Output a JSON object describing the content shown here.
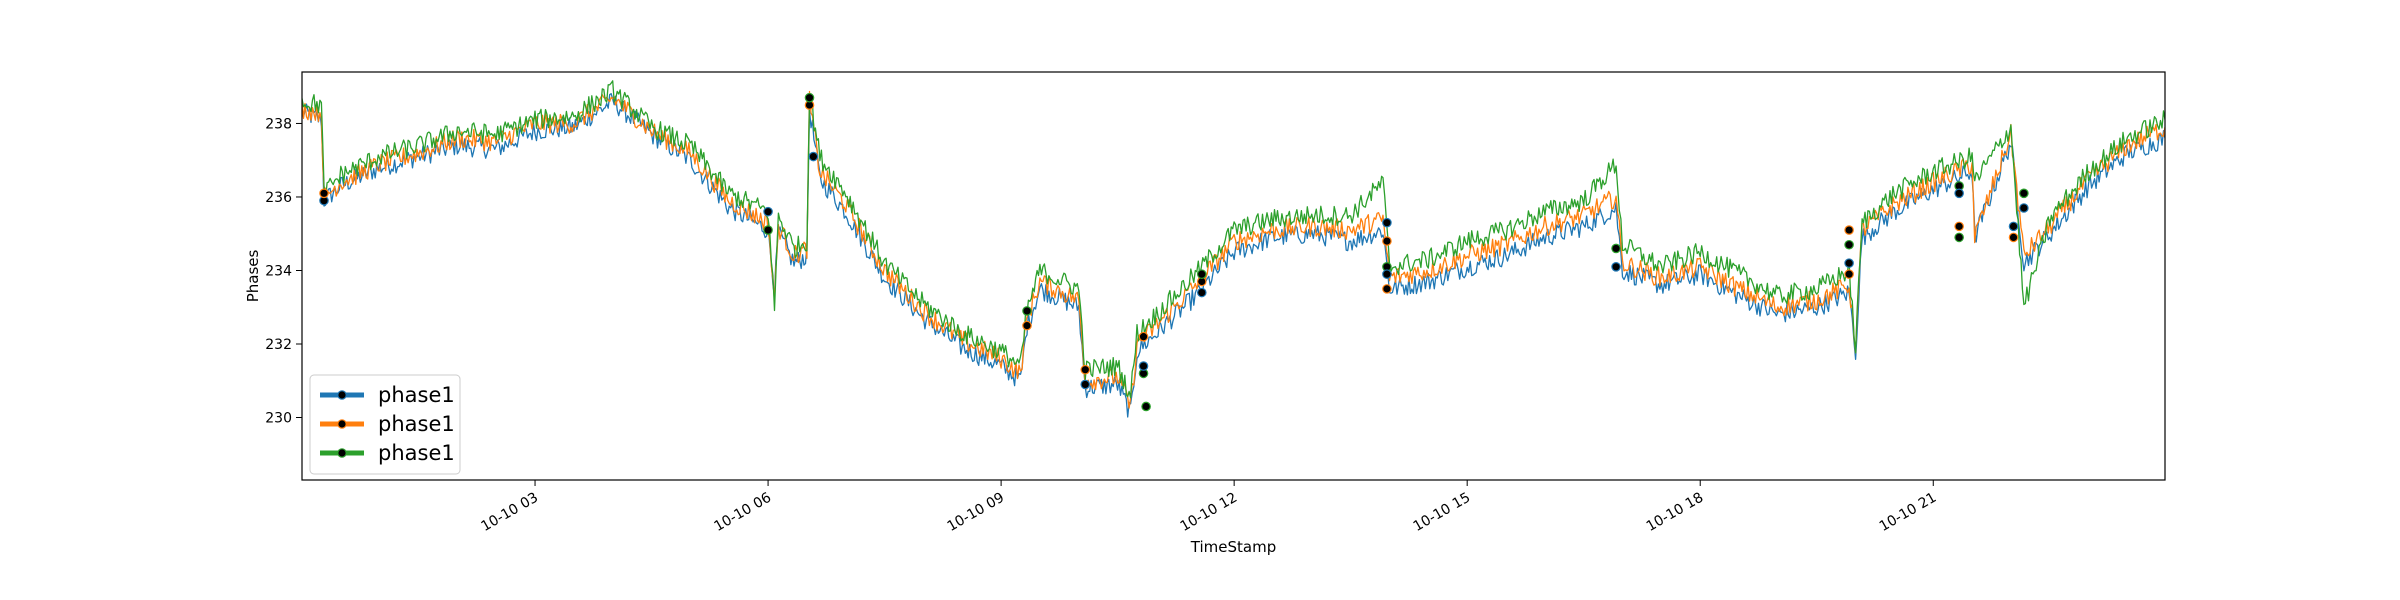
{
  "chart_data": {
    "type": "line",
    "title": "",
    "xlabel": "TimeStamp",
    "ylabel": "Phases",
    "xlim": [
      "2023-10-10 00:00",
      "2023-10-10 23:59"
    ],
    "ylim": [
      228.3,
      239.4
    ],
    "yticks": [
      230,
      232,
      234,
      236,
      238
    ],
    "xticks": [
      {
        "t": "2023-10-10 03:00",
        "label": "10-10 03"
      },
      {
        "t": "2023-10-10 06:00",
        "label": "10-10 06"
      },
      {
        "t": "2023-10-10 09:00",
        "label": "10-10 09"
      },
      {
        "t": "2023-10-10 12:00",
        "label": "10-10 12"
      },
      {
        "t": "2023-10-10 15:00",
        "label": "10-10 15"
      },
      {
        "t": "2023-10-10 18:00",
        "label": "10-10 18"
      },
      {
        "t": "2023-10-10 21:00",
        "label": "10-10 21"
      }
    ],
    "grid": false,
    "legend_position": "lower-left",
    "series": [
      {
        "name": "phase1",
        "color": "#1f77b4",
        "points": [
          [
            "2023-10-10 00:00",
            238.3
          ],
          [
            "2023-10-10 00:15",
            238.1
          ],
          [
            "2023-10-10 00:17",
            235.9
          ],
          [
            "2023-10-10 00:30",
            236.3
          ],
          [
            "2023-10-10 01:00",
            236.8
          ],
          [
            "2023-10-10 01:30",
            237.1
          ],
          [
            "2023-10-10 02:00",
            237.4
          ],
          [
            "2023-10-10 02:30",
            237.3
          ],
          [
            "2023-10-10 03:00",
            237.8
          ],
          [
            "2023-10-10 03:30",
            237.9
          ],
          [
            "2023-10-10 04:00",
            238.6
          ],
          [
            "2023-10-10 04:30",
            237.7
          ],
          [
            "2023-10-10 05:00",
            237.0
          ],
          [
            "2023-10-10 05:30",
            235.7
          ],
          [
            "2023-10-10 06:00",
            235.1
          ],
          [
            "2023-10-10 06:05",
            233.5
          ],
          [
            "2023-10-10 06:08",
            235.0
          ],
          [
            "2023-10-10 06:20",
            234.2
          ],
          [
            "2023-10-10 06:30",
            234.4
          ],
          [
            "2023-10-10 06:32",
            238.4
          ],
          [
            "2023-10-10 06:40",
            236.5
          ],
          [
            "2023-10-10 07:00",
            235.6
          ],
          [
            "2023-10-10 07:30",
            233.8
          ],
          [
            "2023-10-10 08:00",
            232.7
          ],
          [
            "2023-10-10 08:30",
            231.9
          ],
          [
            "2023-10-10 09:00",
            231.4
          ],
          [
            "2023-10-10 09:15",
            231.0
          ],
          [
            "2023-10-10 09:20",
            232.5
          ],
          [
            "2023-10-10 09:30",
            233.5
          ],
          [
            "2023-10-10 10:00",
            233.0
          ],
          [
            "2023-10-10 10:05",
            230.8
          ],
          [
            "2023-10-10 10:30",
            230.9
          ],
          [
            "2023-10-10 10:40",
            230.1
          ],
          [
            "2023-10-10 10:45",
            231.8
          ],
          [
            "2023-10-10 11:00",
            232.3
          ],
          [
            "2023-10-10 11:30",
            233.3
          ],
          [
            "2023-10-10 12:00",
            234.5
          ],
          [
            "2023-10-10 12:30",
            234.9
          ],
          [
            "2023-10-10 13:00",
            235.0
          ],
          [
            "2023-10-10 13:30",
            234.8
          ],
          [
            "2023-10-10 13:55",
            235.1
          ],
          [
            "2023-10-10 14:00",
            233.5
          ],
          [
            "2023-10-10 14:30",
            233.7
          ],
          [
            "2023-10-10 15:00",
            234.1
          ],
          [
            "2023-10-10 15:30",
            234.4
          ],
          [
            "2023-10-10 16:00",
            234.9
          ],
          [
            "2023-10-10 16:30",
            235.2
          ],
          [
            "2023-10-10 16:55",
            235.7
          ],
          [
            "2023-10-10 17:00",
            234.0
          ],
          [
            "2023-10-10 17:30",
            233.6
          ],
          [
            "2023-10-10 18:00",
            233.9
          ],
          [
            "2023-10-10 18:30",
            233.3
          ],
          [
            "2023-10-10 19:00",
            232.8
          ],
          [
            "2023-10-10 19:30",
            233.0
          ],
          [
            "2023-10-10 19:55",
            233.4
          ],
          [
            "2023-10-10 20:00",
            231.8
          ],
          [
            "2023-10-10 20:05",
            234.9
          ],
          [
            "2023-10-10 20:30",
            235.6
          ],
          [
            "2023-10-10 21:00",
            236.2
          ],
          [
            "2023-10-10 21:30",
            236.7
          ],
          [
            "2023-10-10 21:32",
            234.9
          ],
          [
            "2023-10-10 22:00",
            237.5
          ],
          [
            "2023-10-10 22:10",
            234.2
          ],
          [
            "2023-10-10 22:30",
            235.0
          ],
          [
            "2023-10-10 23:00",
            236.3
          ],
          [
            "2023-10-10 23:30",
            237.2
          ],
          [
            "2023-10-10 23:59",
            237.6
          ]
        ]
      },
      {
        "name": "phase1",
        "color": "#ff7f0e",
        "points": [
          [
            "2023-10-10 00:00",
            238.4
          ],
          [
            "2023-10-10 00:15",
            238.3
          ],
          [
            "2023-10-10 00:17",
            236.0
          ],
          [
            "2023-10-10 00:30",
            236.4
          ],
          [
            "2023-10-10 01:00",
            236.9
          ],
          [
            "2023-10-10 01:30",
            237.2
          ],
          [
            "2023-10-10 02:00",
            237.6
          ],
          [
            "2023-10-10 02:30",
            237.5
          ],
          [
            "2023-10-10 03:00",
            238.0
          ],
          [
            "2023-10-10 03:30",
            238.0
          ],
          [
            "2023-10-10 04:00",
            238.7
          ],
          [
            "2023-10-10 04:30",
            237.8
          ],
          [
            "2023-10-10 05:00",
            237.2
          ],
          [
            "2023-10-10 05:30",
            235.9
          ],
          [
            "2023-10-10 06:00",
            235.3
          ],
          [
            "2023-10-10 06:05",
            233.2
          ],
          [
            "2023-10-10 06:08",
            235.2
          ],
          [
            "2023-10-10 06:20",
            234.4
          ],
          [
            "2023-10-10 06:30",
            234.6
          ],
          [
            "2023-10-10 06:32",
            238.6
          ],
          [
            "2023-10-10 06:40",
            236.7
          ],
          [
            "2023-10-10 07:00",
            235.8
          ],
          [
            "2023-10-10 07:30",
            234.0
          ],
          [
            "2023-10-10 08:00",
            232.9
          ],
          [
            "2023-10-10 08:30",
            232.1
          ],
          [
            "2023-10-10 09:00",
            231.6
          ],
          [
            "2023-10-10 09:15",
            231.2
          ],
          [
            "2023-10-10 09:20",
            232.7
          ],
          [
            "2023-10-10 09:30",
            233.7
          ],
          [
            "2023-10-10 10:00",
            233.2
          ],
          [
            "2023-10-10 10:05",
            231.0
          ],
          [
            "2023-10-10 10:30",
            231.1
          ],
          [
            "2023-10-10 10:40",
            230.3
          ],
          [
            "2023-10-10 10:45",
            232.0
          ],
          [
            "2023-10-10 11:00",
            232.5
          ],
          [
            "2023-10-10 11:30",
            233.6
          ],
          [
            "2023-10-10 12:00",
            234.8
          ],
          [
            "2023-10-10 12:30",
            235.1
          ],
          [
            "2023-10-10 13:00",
            235.2
          ],
          [
            "2023-10-10 13:30",
            235.1
          ],
          [
            "2023-10-10 13:55",
            235.4
          ],
          [
            "2023-10-10 14:00",
            233.8
          ],
          [
            "2023-10-10 14:30",
            234.0
          ],
          [
            "2023-10-10 15:00",
            234.4
          ],
          [
            "2023-10-10 15:30",
            234.7
          ],
          [
            "2023-10-10 16:00",
            235.2
          ],
          [
            "2023-10-10 16:30",
            235.5
          ],
          [
            "2023-10-10 16:55",
            236.0
          ],
          [
            "2023-10-10 17:00",
            234.2
          ],
          [
            "2023-10-10 17:30",
            233.8
          ],
          [
            "2023-10-10 18:00",
            234.1
          ],
          [
            "2023-10-10 18:30",
            233.5
          ],
          [
            "2023-10-10 19:00",
            233.0
          ],
          [
            "2023-10-10 19:30",
            233.2
          ],
          [
            "2023-10-10 19:55",
            233.6
          ],
          [
            "2023-10-10 20:00",
            232.0
          ],
          [
            "2023-10-10 20:05",
            235.1
          ],
          [
            "2023-10-10 20:30",
            235.8
          ],
          [
            "2023-10-10 21:00",
            236.4
          ],
          [
            "2023-10-10 21:30",
            236.9
          ],
          [
            "2023-10-10 21:32",
            234.9
          ],
          [
            "2023-10-10 22:00",
            237.7
          ],
          [
            "2023-10-10 22:10",
            234.4
          ],
          [
            "2023-10-10 22:30",
            235.2
          ],
          [
            "2023-10-10 23:00",
            236.5
          ],
          [
            "2023-10-10 23:30",
            237.4
          ],
          [
            "2023-10-10 23:59",
            237.9
          ]
        ]
      },
      {
        "name": "phase1",
        "color": "#2ca02c",
        "points": [
          [
            "2023-10-10 00:00",
            238.6
          ],
          [
            "2023-10-10 00:15",
            238.5
          ],
          [
            "2023-10-10 00:17",
            236.1
          ],
          [
            "2023-10-10 00:30",
            236.6
          ],
          [
            "2023-10-10 01:00",
            237.1
          ],
          [
            "2023-10-10 01:30",
            237.4
          ],
          [
            "2023-10-10 02:00",
            237.8
          ],
          [
            "2023-10-10 02:30",
            237.7
          ],
          [
            "2023-10-10 03:00",
            238.1
          ],
          [
            "2023-10-10 03:30",
            238.2
          ],
          [
            "2023-10-10 04:00",
            238.9
          ],
          [
            "2023-10-10 04:30",
            237.9
          ],
          [
            "2023-10-10 05:00",
            237.4
          ],
          [
            "2023-10-10 05:30",
            236.1
          ],
          [
            "2023-10-10 06:00",
            235.6
          ],
          [
            "2023-10-10 06:05",
            233.0
          ],
          [
            "2023-10-10 06:08",
            235.5
          ],
          [
            "2023-10-10 06:20",
            234.6
          ],
          [
            "2023-10-10 06:30",
            234.8
          ],
          [
            "2023-10-10 06:32",
            238.8
          ],
          [
            "2023-10-10 06:40",
            237.1
          ],
          [
            "2023-10-10 07:00",
            236.1
          ],
          [
            "2023-10-10 07:30",
            234.2
          ],
          [
            "2023-10-10 08:00",
            233.1
          ],
          [
            "2023-10-10 08:30",
            232.3
          ],
          [
            "2023-10-10 09:00",
            231.8
          ],
          [
            "2023-10-10 09:15",
            231.4
          ],
          [
            "2023-10-10 09:20",
            232.9
          ],
          [
            "2023-10-10 09:30",
            234.0
          ],
          [
            "2023-10-10 10:00",
            233.5
          ],
          [
            "2023-10-10 10:05",
            231.3
          ],
          [
            "2023-10-10 10:30",
            231.4
          ],
          [
            "2023-10-10 10:40",
            230.6
          ],
          [
            "2023-10-10 10:45",
            232.3
          ],
          [
            "2023-10-10 11:00",
            232.8
          ],
          [
            "2023-10-10 11:30",
            233.9
          ],
          [
            "2023-10-10 12:00",
            235.1
          ],
          [
            "2023-10-10 12:30",
            235.4
          ],
          [
            "2023-10-10 13:00",
            235.5
          ],
          [
            "2023-10-10 13:30",
            235.5
          ],
          [
            "2023-10-10 13:55",
            236.4
          ],
          [
            "2023-10-10 14:00",
            234.1
          ],
          [
            "2023-10-10 14:30",
            234.3
          ],
          [
            "2023-10-10 15:00",
            234.8
          ],
          [
            "2023-10-10 15:30",
            235.1
          ],
          [
            "2023-10-10 16:00",
            235.6
          ],
          [
            "2023-10-10 16:30",
            235.9
          ],
          [
            "2023-10-10 16:55",
            236.9
          ],
          [
            "2023-10-10 17:00",
            234.7
          ],
          [
            "2023-10-10 17:30",
            234.1
          ],
          [
            "2023-10-10 18:00",
            234.5
          ],
          [
            "2023-10-10 18:30",
            233.9
          ],
          [
            "2023-10-10 19:00",
            233.3
          ],
          [
            "2023-10-10 19:30",
            233.5
          ],
          [
            "2023-10-10 19:55",
            234.0
          ],
          [
            "2023-10-10 20:00",
            231.9
          ],
          [
            "2023-10-10 20:05",
            235.3
          ],
          [
            "2023-10-10 20:30",
            236.1
          ],
          [
            "2023-10-10 21:00",
            236.7
          ],
          [
            "2023-10-10 21:30",
            237.1
          ],
          [
            "2023-10-10 21:32",
            236.4
          ],
          [
            "2023-10-10 22:00",
            237.9
          ],
          [
            "2023-10-10 22:10",
            233.0
          ],
          [
            "2023-10-10 22:30",
            235.4
          ],
          [
            "2023-10-10 23:00",
            236.7
          ],
          [
            "2023-10-10 23:30",
            237.6
          ],
          [
            "2023-10-10 23:59",
            238.1
          ]
        ]
      }
    ],
    "markers": [
      [
        "2023-10-10 00:17",
        235.9
      ],
      [
        "2023-10-10 00:17",
        236.1
      ],
      [
        "2023-10-10 06:00",
        235.1
      ],
      [
        "2023-10-10 06:00",
        235.6
      ],
      [
        "2023-10-10 06:32",
        238.5
      ],
      [
        "2023-10-10 06:32",
        238.7
      ],
      [
        "2023-10-10 06:35",
        237.1
      ],
      [
        "2023-10-10 09:20",
        232.5
      ],
      [
        "2023-10-10 09:20",
        232.9
      ],
      [
        "2023-10-10 10:05",
        230.9
      ],
      [
        "2023-10-10 10:05",
        231.3
      ],
      [
        "2023-10-10 10:50",
        231.2
      ],
      [
        "2023-10-10 10:50",
        231.4
      ],
      [
        "2023-10-10 10:50",
        232.2
      ],
      [
        "2023-10-10 10:52",
        230.3
      ],
      [
        "2023-10-10 11:35",
        233.4
      ],
      [
        "2023-10-10 11:35",
        233.7
      ],
      [
        "2023-10-10 11:35",
        233.9
      ],
      [
        "2023-10-10 13:58",
        235.3
      ],
      [
        "2023-10-10 13:58",
        234.8
      ],
      [
        "2023-10-10 13:58",
        234.1
      ],
      [
        "2023-10-10 13:58",
        233.9
      ],
      [
        "2023-10-10 13:58",
        233.5
      ],
      [
        "2023-10-10 16:55",
        234.6
      ],
      [
        "2023-10-10 16:55",
        234.1
      ],
      [
        "2023-10-10 19:55",
        235.1
      ],
      [
        "2023-10-10 19:55",
        234.7
      ],
      [
        "2023-10-10 19:55",
        234.2
      ],
      [
        "2023-10-10 19:55",
        233.9
      ],
      [
        "2023-10-10 21:20",
        236.3
      ],
      [
        "2023-10-10 21:20",
        236.1
      ],
      [
        "2023-10-10 21:20",
        235.2
      ],
      [
        "2023-10-10 21:20",
        234.9
      ],
      [
        "2023-10-10 22:02",
        235.2
      ],
      [
        "2023-10-10 22:02",
        234.9
      ],
      [
        "2023-10-10 22:10",
        236.1
      ],
      [
        "2023-10-10 22:10",
        235.7
      ]
    ]
  }
}
